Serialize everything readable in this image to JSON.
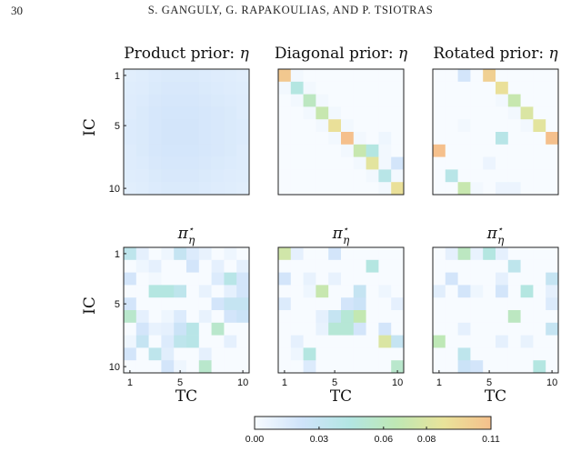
{
  "page_header": {
    "page_number": "30",
    "running_head": "S. GANGULY, G. RAPAKOULIAS, AND P. TSIOTRAS"
  },
  "colors": {
    "colormap": [
      "#f7fbff",
      "#cfe3fa",
      "#b3e6e3",
      "#bfe8b4",
      "#e9e39a",
      "#f5c08c"
    ],
    "frame": "#222222"
  },
  "axis_labels": {
    "x": "TC",
    "y": "IC"
  },
  "colorbar": {
    "min": 0,
    "max": 0.11,
    "tick_labels": [
      "0.00",
      "0.03",
      "0.06",
      "0.08",
      "0.11"
    ],
    "tick_values": [
      0,
      0.03,
      0.06,
      0.08,
      0.11
    ]
  },
  "chart_data": [
    {
      "type": "heatmap",
      "row": 0,
      "col": 0,
      "title": "Product prior: η",
      "y_ticks": [
        "1",
        "5",
        "10"
      ],
      "x_ticks": [],
      "values": [
        [
          0.012,
          0.013,
          0.015,
          0.016,
          0.016,
          0.016,
          0.015,
          0.014,
          0.013,
          0.012
        ],
        [
          0.013,
          0.014,
          0.016,
          0.017,
          0.017,
          0.017,
          0.016,
          0.015,
          0.014,
          0.013
        ],
        [
          0.014,
          0.015,
          0.017,
          0.018,
          0.018,
          0.018,
          0.017,
          0.016,
          0.015,
          0.014
        ],
        [
          0.014,
          0.016,
          0.018,
          0.019,
          0.019,
          0.019,
          0.018,
          0.017,
          0.016,
          0.014
        ],
        [
          0.015,
          0.016,
          0.018,
          0.02,
          0.02,
          0.02,
          0.018,
          0.017,
          0.016,
          0.015
        ],
        [
          0.015,
          0.016,
          0.018,
          0.02,
          0.02,
          0.02,
          0.018,
          0.017,
          0.016,
          0.015
        ],
        [
          0.014,
          0.016,
          0.018,
          0.019,
          0.019,
          0.019,
          0.018,
          0.017,
          0.016,
          0.014
        ],
        [
          0.014,
          0.015,
          0.017,
          0.018,
          0.018,
          0.018,
          0.017,
          0.016,
          0.015,
          0.014
        ],
        [
          0.013,
          0.014,
          0.016,
          0.017,
          0.017,
          0.017,
          0.016,
          0.015,
          0.014,
          0.013
        ],
        [
          0.012,
          0.013,
          0.015,
          0.016,
          0.016,
          0.016,
          0.015,
          0.014,
          0.013,
          0.012
        ]
      ]
    },
    {
      "type": "heatmap",
      "row": 0,
      "col": 1,
      "title": "Diagonal prior: η",
      "y_ticks": [],
      "x_ticks": [],
      "values": [
        [
          0.105,
          0.003,
          0,
          0,
          0,
          0,
          0,
          0,
          0,
          0
        ],
        [
          0.003,
          0.045,
          0.003,
          0,
          0,
          0,
          0,
          0,
          0,
          0
        ],
        [
          0,
          0.003,
          0.06,
          0.003,
          0,
          0,
          0,
          0,
          0,
          0
        ],
        [
          0,
          0,
          0.003,
          0.07,
          0.003,
          0,
          0,
          0,
          0,
          0
        ],
        [
          0,
          0,
          0,
          0.003,
          0.09,
          0.003,
          0,
          0,
          0,
          0
        ],
        [
          0,
          0,
          0,
          0,
          0.003,
          0.11,
          0.003,
          0,
          0.005,
          0
        ],
        [
          0,
          0,
          0,
          0,
          0,
          0.003,
          0.07,
          0.045,
          0.003,
          0
        ],
        [
          0,
          0,
          0,
          0,
          0,
          0,
          0.003,
          0.085,
          0.003,
          0.02
        ],
        [
          0,
          0,
          0,
          0,
          0,
          0,
          0,
          0.003,
          0.04,
          0.003
        ],
        [
          0,
          0,
          0,
          0,
          0,
          0,
          0,
          0,
          0.003,
          0.09
        ]
      ]
    },
    {
      "type": "heatmap",
      "row": 0,
      "col": 2,
      "title": "Rotated prior: η",
      "y_ticks": [],
      "x_ticks": [],
      "values": [
        [
          0,
          0,
          0.02,
          0,
          0.1,
          0,
          0,
          0,
          0,
          0
        ],
        [
          0,
          0,
          0,
          0,
          0,
          0.09,
          0,
          0,
          0,
          0
        ],
        [
          0,
          0,
          0,
          0,
          0,
          0.003,
          0.07,
          0,
          0,
          0
        ],
        [
          0,
          0,
          0,
          0,
          0,
          0,
          0.003,
          0.08,
          0,
          0
        ],
        [
          0,
          0,
          0.003,
          0,
          0,
          0,
          0,
          0.003,
          0.085,
          0
        ],
        [
          0,
          0,
          0,
          0,
          0,
          0.04,
          0,
          0,
          0,
          0.11
        ],
        [
          0.11,
          0,
          0,
          0,
          0,
          0,
          0,
          0,
          0,
          0
        ],
        [
          0,
          0,
          0,
          0,
          0.006,
          0,
          0,
          0,
          0,
          0
        ],
        [
          0,
          0.04,
          0,
          0,
          0,
          0,
          0,
          0,
          0,
          0
        ],
        [
          0,
          0,
          0.07,
          0.003,
          0,
          0.006,
          0.006,
          0,
          0,
          0
        ]
      ]
    },
    {
      "type": "heatmap",
      "row": 1,
      "col": 0,
      "title": "π⋆η",
      "y_ticks": [
        "1",
        "5",
        "10"
      ],
      "x_ticks": [
        "1",
        "5",
        "10"
      ],
      "values": [
        [
          0.035,
          0.01,
          0,
          0.005,
          0.03,
          0.015,
          0.008,
          0,
          0.005,
          0
        ],
        [
          0,
          0.005,
          0.01,
          0,
          0,
          0.02,
          0,
          0.01,
          0,
          0.01
        ],
        [
          0.02,
          0,
          0.003,
          0,
          0,
          0,
          0,
          0.015,
          0.04,
          0.02
        ],
        [
          0,
          0,
          0.045,
          0.045,
          0.035,
          0,
          0.008,
          0,
          0.01,
          0.02
        ],
        [
          0.02,
          0,
          0,
          0,
          0,
          0,
          0,
          0.02,
          0.03,
          0.03
        ],
        [
          0.055,
          0.01,
          0,
          0.005,
          0.015,
          0,
          0.008,
          0,
          0.02,
          0.025
        ],
        [
          0,
          0.02,
          0.008,
          0.01,
          0.025,
          0.04,
          0,
          0.055,
          0,
          0
        ],
        [
          0.005,
          0.03,
          0,
          0.015,
          0.035,
          0.04,
          0,
          0,
          0.01,
          0
        ],
        [
          0.02,
          0,
          0.035,
          0.012,
          0,
          0,
          0.01,
          0,
          0,
          0
        ],
        [
          0,
          0,
          0,
          0.02,
          0.005,
          0,
          0.055,
          0,
          0,
          0
        ]
      ]
    },
    {
      "type": "heatmap",
      "row": 1,
      "col": 1,
      "title": "π⋆η",
      "y_ticks": [],
      "x_ticks": [
        "1",
        "5",
        "10"
      ],
      "values": [
        [
          0.075,
          0.01,
          0,
          0,
          0.02,
          0,
          0,
          0,
          0,
          0
        ],
        [
          0,
          0,
          0,
          0,
          0,
          0,
          0,
          0.045,
          0,
          0
        ],
        [
          0.02,
          0,
          0.008,
          0,
          0.008,
          0,
          0,
          0,
          0,
          0
        ],
        [
          0,
          0,
          0.005,
          0.07,
          0,
          0,
          0.03,
          0,
          0.005,
          0
        ],
        [
          0.015,
          0,
          0,
          0,
          0,
          0.02,
          0.025,
          0,
          0,
          0.01
        ],
        [
          0,
          0,
          0,
          0.01,
          0.03,
          0.05,
          0.068,
          0,
          0,
          0
        ],
        [
          0,
          0,
          0,
          0.008,
          0.05,
          0.05,
          0.02,
          0,
          0.02,
          0
        ],
        [
          0,
          0.01,
          0,
          0,
          0,
          0,
          0,
          0,
          0.08,
          0.03
        ],
        [
          0,
          0.005,
          0.045,
          0,
          0,
          0,
          0,
          0,
          0,
          0
        ],
        [
          0,
          0,
          0.015,
          0,
          0,
          0,
          0,
          0,
          0,
          0.055
        ]
      ]
    },
    {
      "type": "heatmap",
      "row": 1,
      "col": 2,
      "title": "π⋆η",
      "y_ticks": [],
      "x_ticks": [
        "1",
        "5",
        "10"
      ],
      "values": [
        [
          0,
          0.01,
          0.06,
          0.008,
          0.045,
          0.01,
          0,
          0,
          0,
          0
        ],
        [
          0,
          0,
          0,
          0,
          0,
          0,
          0.035,
          0,
          0,
          0
        ],
        [
          0,
          0.02,
          0,
          0,
          0,
          0.01,
          0,
          0,
          0,
          0.03
        ],
        [
          0.012,
          0,
          0.02,
          0.005,
          0,
          0.02,
          0,
          0.045,
          0,
          0.01
        ],
        [
          0,
          0,
          0,
          0,
          0,
          0,
          0,
          0,
          0,
          0.015
        ],
        [
          0,
          0,
          0,
          0,
          0,
          0,
          0.06,
          0,
          0,
          0
        ],
        [
          0,
          0,
          0.01,
          0,
          0,
          0,
          0,
          0,
          0,
          0.03
        ],
        [
          0.065,
          0,
          0,
          0,
          0,
          0.01,
          0,
          0.008,
          0,
          0
        ],
        [
          0,
          0,
          0.035,
          0,
          0,
          0,
          0,
          0,
          0,
          0
        ],
        [
          0,
          0,
          0.025,
          0.02,
          0,
          0,
          0,
          0,
          0.045,
          0
        ]
      ]
    }
  ]
}
